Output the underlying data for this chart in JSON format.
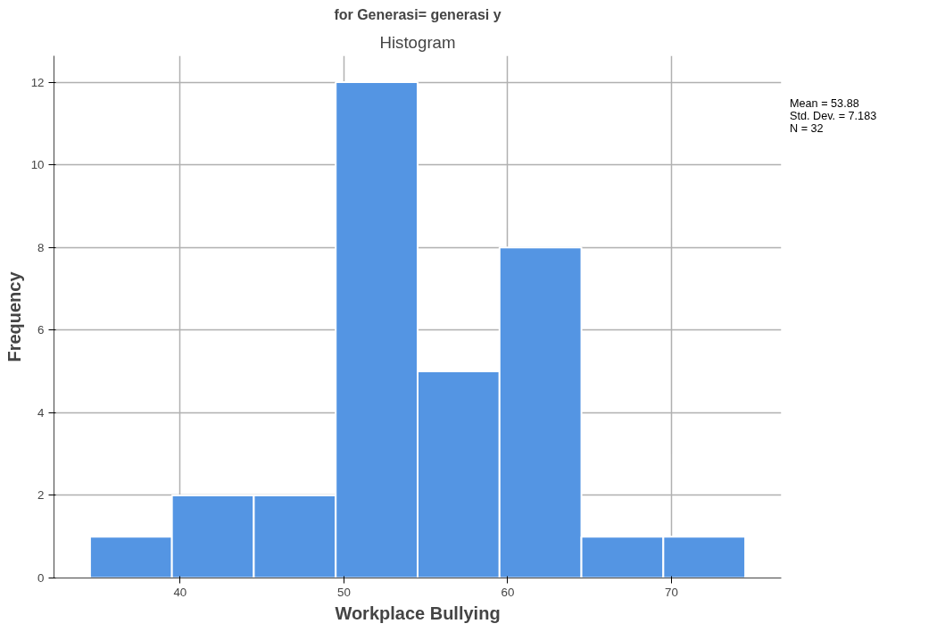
{
  "chart_data": {
    "type": "histogram",
    "title": "Histogram",
    "subtitle": "for Generasi= generasi y",
    "xlabel": "Workplace Bullying",
    "ylabel": "Frequency",
    "bins": [
      34.5,
      39.5,
      44.5,
      49.5,
      54.5,
      59.5,
      64.5,
      69.5,
      74.5
    ],
    "values": [
      1,
      2,
      2,
      12,
      5,
      8,
      1,
      1
    ],
    "color": "#5495e3",
    "xlim": [
      32.3,
      76.7
    ],
    "xticks": [
      40,
      50,
      60,
      70
    ],
    "ylim": [
      0,
      12.64
    ],
    "yticks": [
      0,
      2,
      4,
      6,
      8,
      10,
      12
    ],
    "grid": true,
    "annotations": [
      "Mean = 53.88",
      "Std. Dev. = 7.183",
      "N = 32"
    ]
  }
}
